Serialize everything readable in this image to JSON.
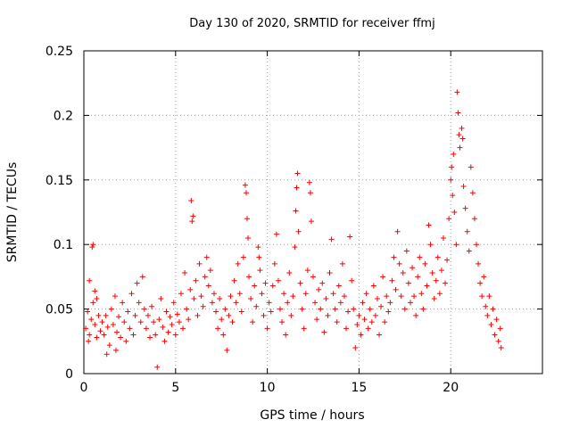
{
  "chart_data": {
    "type": "scatter",
    "title": "Day 130 of 2020, SRMTID for receiver ffmj",
    "xlabel": "GPS time / hours",
    "ylabel": "SRMTID / TECUs",
    "xlim": [
      0,
      25
    ],
    "ylim": [
      0,
      0.25
    ],
    "x_ticks": [
      "0",
      "5",
      "10",
      "15",
      "20"
    ],
    "y_ticks": [
      "0",
      "0.05",
      "0.1",
      "0.15",
      "0.2",
      "0.25"
    ],
    "grid": true,
    "marker": "+",
    "color": "#ff0000",
    "series": [
      {
        "points": [
          [
            0.1,
            0.035
          ],
          [
            0.2,
            0.048
          ],
          [
            0.3,
            0.03
          ],
          [
            0.4,
            0.042
          ],
          [
            0.5,
            0.055
          ],
          [
            0.6,
            0.038
          ],
          [
            0.7,
            0.028
          ],
          [
            0.8,
            0.045
          ],
          [
            0.9,
            0.033
          ],
          [
            1.0,
            0.04
          ],
          [
            0.45,
            0.098
          ],
          [
            0.5,
            0.1
          ],
          [
            0.3,
            0.072
          ],
          [
            0.6,
            0.064
          ],
          [
            0.25,
            0.025
          ],
          [
            0.7,
            0.058
          ],
          [
            1.1,
            0.03
          ],
          [
            1.2,
            0.045
          ],
          [
            1.3,
            0.036
          ],
          [
            1.4,
            0.022
          ],
          [
            1.5,
            0.05
          ],
          [
            1.6,
            0.038
          ],
          [
            1.7,
            0.06
          ],
          [
            1.8,
            0.032
          ],
          [
            1.9,
            0.044
          ],
          [
            2.0,
            0.028
          ],
          [
            1.25,
            0.015
          ],
          [
            1.75,
            0.018
          ],
          [
            2.1,
            0.055
          ],
          [
            2.2,
            0.04
          ],
          [
            2.3,
            0.025
          ],
          [
            2.4,
            0.048
          ],
          [
            2.5,
            0.035
          ],
          [
            2.6,
            0.062
          ],
          [
            2.7,
            0.03
          ],
          [
            2.8,
            0.045
          ],
          [
            2.9,
            0.07
          ],
          [
            3.0,
            0.055
          ],
          [
            3.1,
            0.04
          ],
          [
            3.2,
            0.075
          ],
          [
            3.3,
            0.05
          ],
          [
            3.4,
            0.035
          ],
          [
            3.5,
            0.045
          ],
          [
            3.6,
            0.028
          ],
          [
            3.7,
            0.052
          ],
          [
            3.8,
            0.04
          ],
          [
            3.9,
            0.03
          ],
          [
            4.0,
            0.005
          ],
          [
            4.1,
            0.042
          ],
          [
            4.2,
            0.058
          ],
          [
            4.3,
            0.036
          ],
          [
            4.4,
            0.025
          ],
          [
            4.5,
            0.048
          ],
          [
            4.6,
            0.032
          ],
          [
            4.7,
            0.044
          ],
          [
            4.8,
            0.038
          ],
          [
            4.9,
            0.055
          ],
          [
            5.0,
            0.03
          ],
          [
            5.1,
            0.046
          ],
          [
            5.2,
            0.04
          ],
          [
            5.3,
            0.062
          ],
          [
            5.4,
            0.035
          ],
          [
            5.5,
            0.078
          ],
          [
            5.6,
            0.05
          ],
          [
            5.7,
            0.042
          ],
          [
            5.8,
            0.065
          ],
          [
            5.85,
            0.134
          ],
          [
            5.9,
            0.118
          ],
          [
            5.95,
            0.122
          ],
          [
            6.0,
            0.058
          ],
          [
            6.1,
            0.072
          ],
          [
            6.2,
            0.045
          ],
          [
            6.3,
            0.085
          ],
          [
            6.4,
            0.06
          ],
          [
            6.5,
            0.052
          ],
          [
            6.6,
            0.075
          ],
          [
            6.7,
            0.09
          ],
          [
            6.8,
            0.068
          ],
          [
            6.9,
            0.08
          ],
          [
            7.0,
            0.055
          ],
          [
            7.1,
            0.062
          ],
          [
            7.2,
            0.048
          ],
          [
            7.3,
            0.035
          ],
          [
            7.4,
            0.058
          ],
          [
            7.5,
            0.042
          ],
          [
            7.6,
            0.03
          ],
          [
            7.7,
            0.05
          ],
          [
            7.8,
            0.018
          ],
          [
            7.9,
            0.045
          ],
          [
            8.0,
            0.06
          ],
          [
            8.1,
            0.04
          ],
          [
            8.2,
            0.072
          ],
          [
            8.3,
            0.055
          ],
          [
            8.4,
            0.085
          ],
          [
            8.5,
            0.062
          ],
          [
            8.6,
            0.048
          ],
          [
            8.7,
            0.09
          ],
          [
            8.8,
            0.146
          ],
          [
            8.85,
            0.14
          ],
          [
            8.9,
            0.12
          ],
          [
            8.95,
            0.105
          ],
          [
            9.0,
            0.075
          ],
          [
            9.1,
            0.058
          ],
          [
            9.2,
            0.04
          ],
          [
            9.3,
            0.068
          ],
          [
            9.4,
            0.052
          ],
          [
            9.5,
            0.098
          ],
          [
            9.55,
            0.09
          ],
          [
            9.6,
            0.08
          ],
          [
            9.7,
            0.062
          ],
          [
            9.8,
            0.045
          ],
          [
            9.9,
            0.07
          ],
          [
            10.0,
            0.035
          ],
          [
            10.1,
            0.055
          ],
          [
            10.2,
            0.048
          ],
          [
            10.3,
            0.068
          ],
          [
            10.4,
            0.085
          ],
          [
            10.5,
            0.108
          ],
          [
            10.6,
            0.072
          ],
          [
            10.7,
            0.05
          ],
          [
            10.8,
            0.04
          ],
          [
            10.9,
            0.062
          ],
          [
            11.0,
            0.03
          ],
          [
            11.1,
            0.055
          ],
          [
            11.2,
            0.078
          ],
          [
            11.3,
            0.045
          ],
          [
            11.4,
            0.06
          ],
          [
            11.5,
            0.098
          ],
          [
            11.55,
            0.126
          ],
          [
            11.6,
            0.144
          ],
          [
            11.65,
            0.155
          ],
          [
            11.7,
            0.11
          ],
          [
            11.8,
            0.07
          ],
          [
            11.9,
            0.05
          ],
          [
            12.0,
            0.035
          ],
          [
            12.1,
            0.062
          ],
          [
            12.2,
            0.08
          ],
          [
            12.3,
            0.148
          ],
          [
            12.35,
            0.14
          ],
          [
            12.4,
            0.118
          ],
          [
            12.5,
            0.075
          ],
          [
            12.6,
            0.055
          ],
          [
            12.7,
            0.042
          ],
          [
            12.8,
            0.065
          ],
          [
            12.9,
            0.05
          ],
          [
            13.0,
            0.07
          ],
          [
            13.1,
            0.032
          ],
          [
            13.2,
            0.058
          ],
          [
            13.3,
            0.045
          ],
          [
            13.4,
            0.078
          ],
          [
            13.5,
            0.104
          ],
          [
            13.6,
            0.062
          ],
          [
            13.7,
            0.05
          ],
          [
            13.8,
            0.04
          ],
          [
            13.9,
            0.068
          ],
          [
            14.0,
            0.055
          ],
          [
            14.1,
            0.085
          ],
          [
            14.2,
            0.06
          ],
          [
            14.3,
            0.035
          ],
          [
            14.4,
            0.048
          ],
          [
            14.5,
            0.106
          ],
          [
            14.6,
            0.072
          ],
          [
            14.7,
            0.05
          ],
          [
            14.8,
            0.02
          ],
          [
            14.9,
            0.038
          ],
          [
            15.0,
            0.045
          ],
          [
            15.1,
            0.03
          ],
          [
            15.2,
            0.055
          ],
          [
            15.3,
            0.042
          ],
          [
            15.4,
            0.062
          ],
          [
            15.5,
            0.035
          ],
          [
            15.6,
            0.05
          ],
          [
            15.7,
            0.04
          ],
          [
            15.8,
            0.068
          ],
          [
            15.9,
            0.045
          ],
          [
            16.0,
            0.058
          ],
          [
            16.1,
            0.03
          ],
          [
            16.2,
            0.052
          ],
          [
            16.3,
            0.075
          ],
          [
            16.4,
            0.04
          ],
          [
            16.5,
            0.06
          ],
          [
            16.6,
            0.048
          ],
          [
            16.7,
            0.055
          ],
          [
            16.8,
            0.072
          ],
          [
            16.9,
            0.09
          ],
          [
            17.0,
            0.065
          ],
          [
            17.1,
            0.11
          ],
          [
            17.2,
            0.085
          ],
          [
            17.3,
            0.06
          ],
          [
            17.4,
            0.078
          ],
          [
            17.5,
            0.05
          ],
          [
            17.6,
            0.095
          ],
          [
            17.7,
            0.07
          ],
          [
            17.8,
            0.055
          ],
          [
            17.9,
            0.082
          ],
          [
            18.0,
            0.06
          ],
          [
            18.1,
            0.045
          ],
          [
            18.2,
            0.075
          ],
          [
            18.3,
            0.09
          ],
          [
            18.4,
            0.062
          ],
          [
            18.5,
            0.05
          ],
          [
            18.6,
            0.085
          ],
          [
            18.7,
            0.068
          ],
          [
            18.8,
            0.115
          ],
          [
            18.9,
            0.1
          ],
          [
            19.0,
            0.078
          ],
          [
            19.1,
            0.058
          ],
          [
            19.2,
            0.072
          ],
          [
            19.3,
            0.09
          ],
          [
            19.4,
            0.062
          ],
          [
            19.5,
            0.08
          ],
          [
            19.6,
            0.105
          ],
          [
            19.7,
            0.07
          ],
          [
            19.8,
            0.088
          ],
          [
            19.9,
            0.12
          ],
          [
            20.0,
            0.15
          ],
          [
            20.05,
            0.16
          ],
          [
            20.1,
            0.138
          ],
          [
            20.15,
            0.17
          ],
          [
            20.2,
            0.125
          ],
          [
            20.3,
            0.1
          ],
          [
            20.35,
            0.218
          ],
          [
            20.4,
            0.202
          ],
          [
            20.45,
            0.185
          ],
          [
            20.5,
            0.175
          ],
          [
            20.6,
            0.19
          ],
          [
            20.65,
            0.182
          ],
          [
            20.7,
            0.145
          ],
          [
            20.8,
            0.128
          ],
          [
            20.9,
            0.11
          ],
          [
            21.0,
            0.095
          ],
          [
            21.1,
            0.16
          ],
          [
            21.2,
            0.14
          ],
          [
            21.3,
            0.12
          ],
          [
            21.4,
            0.1
          ],
          [
            21.5,
            0.085
          ],
          [
            21.6,
            0.07
          ],
          [
            21.7,
            0.06
          ],
          [
            21.8,
            0.075
          ],
          [
            21.9,
            0.052
          ],
          [
            22.0,
            0.045
          ],
          [
            22.1,
            0.06
          ],
          [
            22.2,
            0.038
          ],
          [
            22.3,
            0.05
          ],
          [
            22.4,
            0.03
          ],
          [
            22.5,
            0.042
          ],
          [
            22.6,
            0.025
          ],
          [
            22.7,
            0.035
          ],
          [
            22.75,
            0.02
          ]
        ]
      }
    ]
  }
}
